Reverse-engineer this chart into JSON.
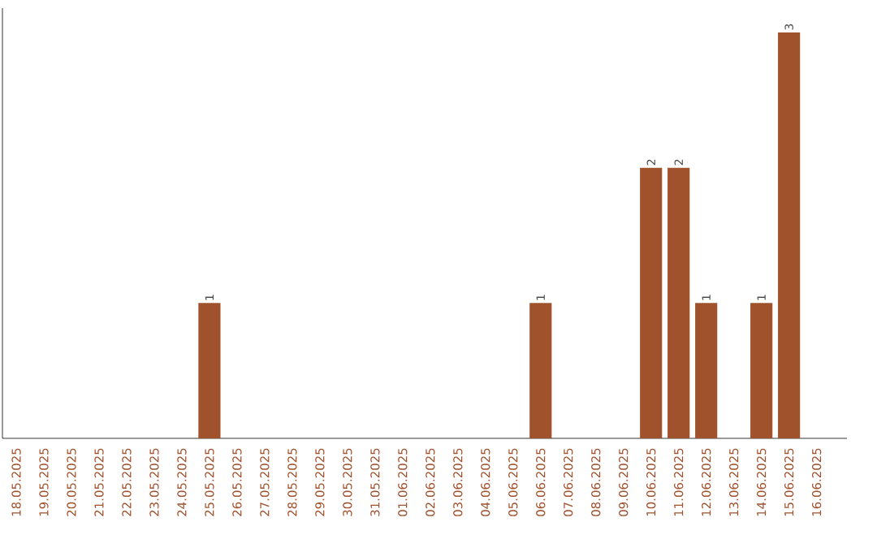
{
  "chart_data": {
    "type": "bar",
    "categories": [
      "18.05.2025",
      "19.05.2025",
      "20.05.2025",
      "21.05.2025",
      "22.05.2025",
      "23.05.2025",
      "24.05.2025",
      "25.05.2025",
      "26.05.2025",
      "27.05.2025",
      "28.05.2025",
      "29.05.2025",
      "30.05.2025",
      "31.05.2025",
      "01.06.2025",
      "02.06.2025",
      "03.06.2025",
      "04.06.2025",
      "05.06.2025",
      "06.06.2025",
      "07.06.2025",
      "08.06.2025",
      "09.06.2025",
      "10.06.2025",
      "11.06.2025",
      "12.06.2025",
      "13.06.2025",
      "14.06.2025",
      "15.06.2025",
      "16.06.2025"
    ],
    "values": [
      0,
      0,
      0,
      0,
      0,
      0,
      0,
      1,
      0,
      0,
      0,
      0,
      0,
      0,
      0,
      0,
      0,
      0,
      0,
      1,
      0,
      0,
      0,
      2,
      2,
      1,
      0,
      1,
      3,
      0
    ],
    "value_labels": [
      null,
      null,
      null,
      null,
      null,
      null,
      null,
      "1",
      null,
      null,
      null,
      null,
      null,
      null,
      null,
      null,
      null,
      null,
      null,
      "1",
      null,
      null,
      null,
      "2",
      "2",
      "1",
      null,
      "1",
      "3",
      null
    ],
    "color": "#a0522d"
  }
}
